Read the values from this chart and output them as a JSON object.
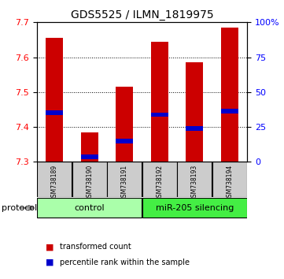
{
  "title": "GDS5525 / ILMN_1819975",
  "samples": [
    "GSM738189",
    "GSM738190",
    "GSM738191",
    "GSM738192",
    "GSM738193",
    "GSM738194"
  ],
  "group_labels": [
    "control",
    "miR-205 silencing"
  ],
  "bar_bottom": 7.3,
  "transformed_counts": [
    7.655,
    7.385,
    7.515,
    7.645,
    7.585,
    7.685
  ],
  "percentile_ranks": [
    7.44,
    7.315,
    7.36,
    7.435,
    7.395,
    7.445
  ],
  "ylim": [
    7.3,
    7.7
  ],
  "right_yticks": [
    0,
    25,
    50,
    75,
    100
  ],
  "right_yticklabels": [
    "0",
    "25",
    "50",
    "75",
    "100%"
  ],
  "left_yticks": [
    7.3,
    7.4,
    7.5,
    7.6,
    7.7
  ],
  "bar_color": "#cc0000",
  "percentile_color": "#0000cc",
  "control_bg": "#aaffaa",
  "silencing_bg": "#44ee44",
  "sample_bg": "#cccccc",
  "bar_width": 0.5,
  "legend_red_label": "transformed count",
  "legend_blue_label": "percentile rank within the sample",
  "protocol_label": "protocol"
}
